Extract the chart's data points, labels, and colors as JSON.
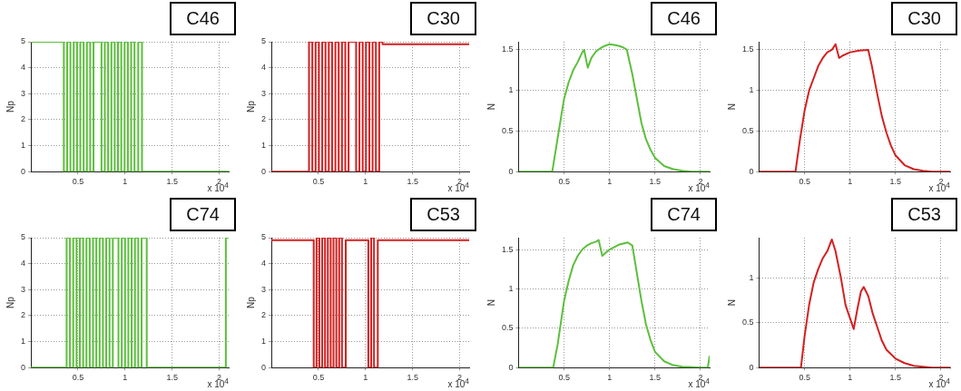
{
  "chart_data": [
    {
      "type": "line",
      "title": "C46",
      "ylabel": "Np",
      "annotations": [
        "x 10$^{4}$"
      ],
      "grid": true,
      "xlim": [
        0,
        2.1
      ],
      "xticks": [
        0.5,
        1,
        1.5,
        2
      ],
      "ylim": [
        0,
        5
      ],
      "yticks": [
        0,
        1,
        2,
        3,
        4,
        5
      ],
      "series": [
        {
          "color": "#5cbf3c",
          "x": [
            0,
            0.35,
            0.35,
            0.385,
            0.385,
            0.42,
            0.42,
            0.455,
            0.455,
            0.49,
            0.49,
            0.525,
            0.525,
            0.56,
            0.56,
            0.595,
            0.595,
            0.63,
            0.63,
            0.665,
            0.665,
            0.7,
            0.75,
            0.75,
            0.785,
            0.785,
            0.82,
            0.82,
            0.855,
            0.855,
            0.89,
            0.89,
            0.925,
            0.925,
            0.96,
            0.96,
            0.995,
            0.995,
            1.03,
            1.03,
            1.065,
            1.065,
            1.1,
            1.1,
            1.14,
            1.14,
            1.18,
            1.18,
            2.1
          ],
          "values": [
            5,
            5,
            0,
            0,
            5,
            5,
            0,
            0,
            5,
            5,
            0,
            0,
            5,
            5,
            0,
            0,
            5,
            5,
            0,
            0,
            5,
            5,
            5,
            0,
            0,
            5,
            5,
            0,
            0,
            5,
            5,
            0,
            0,
            5,
            5,
            0,
            0,
            5,
            5,
            0,
            0,
            5,
            5,
            0,
            0,
            5,
            5,
            0,
            0
          ]
        }
      ]
    },
    {
      "type": "line",
      "title": "C30",
      "ylabel": "Np",
      "annotations": [
        "x 10$^{4}$"
      ],
      "grid": true,
      "xlim": [
        0,
        2.1
      ],
      "xticks": [
        0.5,
        1,
        1.5,
        2
      ],
      "ylim": [
        0,
        5
      ],
      "yticks": [
        0,
        1,
        2,
        3,
        4,
        5
      ],
      "series": [
        {
          "color": "#d42020",
          "x": [
            0,
            0.4,
            0.4,
            0.435,
            0.435,
            0.47,
            0.47,
            0.505,
            0.505,
            0.54,
            0.54,
            0.575,
            0.575,
            0.61,
            0.61,
            0.645,
            0.645,
            0.68,
            0.68,
            0.715,
            0.715,
            0.75,
            0.75,
            0.785,
            0.785,
            0.82,
            0.82,
            0.9,
            0.9,
            0.935,
            0.935,
            0.97,
            0.97,
            1.005,
            1.005,
            1.04,
            1.04,
            1.075,
            1.075,
            1.11,
            1.11,
            1.145,
            1.145,
            1.18,
            1.18,
            2.1
          ],
          "values": [
            0,
            0,
            5,
            5,
            0,
            0,
            5,
            5,
            0,
            0,
            5,
            5,
            0,
            0,
            5,
            5,
            0,
            0,
            5,
            5,
            0,
            0,
            5,
            5,
            0,
            0,
            5,
            5,
            0,
            0,
            5,
            5,
            0,
            0,
            5,
            5,
            0,
            0,
            5,
            5,
            0,
            0,
            5,
            5,
            4.9,
            4.9
          ]
        }
      ]
    },
    {
      "type": "line",
      "title": "C46",
      "ylabel": "N",
      "annotations": [
        "x 10$^{4}$"
      ],
      "grid": true,
      "xlim": [
        0,
        2.1
      ],
      "xticks": [
        0.5,
        1,
        1.5,
        2
      ],
      "ylim": [
        0,
        1.6
      ],
      "yticks": [
        0,
        0.5,
        1,
        1.5
      ],
      "series": [
        {
          "color": "#5cbf3c",
          "x": [
            0,
            0.37,
            0.42,
            0.5,
            0.55,
            0.6,
            0.65,
            0.7,
            0.72,
            0.76,
            0.8,
            0.85,
            0.9,
            0.95,
            1.0,
            1.05,
            1.1,
            1.15,
            1.19,
            1.25,
            1.3,
            1.35,
            1.4,
            1.45,
            1.5,
            1.6,
            1.7,
            1.8,
            1.9,
            2.1
          ],
          "values": [
            0,
            0,
            0.35,
            0.9,
            1.1,
            1.25,
            1.35,
            1.47,
            1.5,
            1.28,
            1.4,
            1.48,
            1.52,
            1.55,
            1.57,
            1.56,
            1.55,
            1.53,
            1.5,
            1.2,
            0.9,
            0.6,
            0.4,
            0.27,
            0.17,
            0.07,
            0.03,
            0.01,
            0,
            0
          ]
        }
      ]
    },
    {
      "type": "line",
      "title": "C30",
      "ylabel": "N",
      "annotations": [
        "x 10$^{4}$"
      ],
      "grid": true,
      "xlim": [
        0,
        2.1
      ],
      "xticks": [
        0.5,
        1,
        1.5,
        2
      ],
      "ylim": [
        0,
        1.6
      ],
      "yticks": [
        0,
        0.5,
        1,
        1.5
      ],
      "series": [
        {
          "color": "#d42020",
          "x": [
            0,
            0.4,
            0.45,
            0.5,
            0.55,
            0.6,
            0.65,
            0.7,
            0.75,
            0.8,
            0.84,
            0.88,
            0.92,
            1.0,
            1.1,
            1.2,
            1.24,
            1.3,
            1.35,
            1.4,
            1.45,
            1.5,
            1.6,
            1.7,
            1.8,
            1.9,
            2.1
          ],
          "values": [
            0,
            0,
            0.4,
            0.75,
            1.0,
            1.15,
            1.3,
            1.4,
            1.47,
            1.5,
            1.57,
            1.4,
            1.43,
            1.47,
            1.49,
            1.5,
            1.3,
            0.95,
            0.68,
            0.48,
            0.32,
            0.2,
            0.08,
            0.03,
            0.01,
            0,
            0
          ]
        }
      ]
    },
    {
      "type": "line",
      "title": "C74",
      "ylabel": "Np",
      "annotations": [
        "x 10$^{4}$"
      ],
      "grid": true,
      "xlim": [
        0,
        2.1
      ],
      "xticks": [
        0.5,
        1,
        1.5,
        2
      ],
      "ylim": [
        0,
        5
      ],
      "yticks": [
        0,
        1,
        2,
        3,
        4,
        5
      ],
      "series": [
        {
          "color": "#5cbf3c",
          "x": [
            0,
            0.38,
            0.38,
            0.415,
            0.415,
            0.45,
            0.45,
            0.485,
            0.485,
            0.52,
            0.52,
            0.555,
            0.555,
            0.59,
            0.59,
            0.625,
            0.625,
            0.66,
            0.66,
            0.695,
            0.695,
            0.73,
            0.73,
            0.765,
            0.765,
            0.8,
            0.8,
            0.835,
            0.835,
            0.87,
            0.87,
            0.93,
            0.93,
            0.965,
            0.965,
            1.0,
            1.0,
            1.035,
            1.035,
            1.07,
            1.07,
            1.105,
            1.105,
            1.14,
            1.14,
            1.175,
            1.175,
            1.23,
            1.23,
            2.07,
            2.07,
            2.1
          ],
          "values": [
            0,
            0,
            5,
            5,
            0,
            0,
            5,
            5,
            0,
            0,
            5,
            5,
            0,
            0,
            5,
            5,
            0,
            0,
            5,
            5,
            0,
            0,
            5,
            5,
            0,
            0,
            5,
            5,
            0,
            0,
            5,
            5,
            0,
            0,
            5,
            5,
            0,
            0,
            5,
            5,
            0,
            0,
            5,
            5,
            0,
            0,
            5,
            5,
            0,
            0,
            5,
            5
          ]
        }
      ]
    },
    {
      "type": "line",
      "title": "C53",
      "ylabel": "Np",
      "annotations": [
        "x 10$^{4}$"
      ],
      "grid": true,
      "xlim": [
        0,
        2.1
      ],
      "xticks": [
        0.5,
        1,
        1.5,
        2
      ],
      "ylim": [
        0,
        5
      ],
      "yticks": [
        0,
        1,
        2,
        3,
        4,
        5
      ],
      "series": [
        {
          "color": "#d42020",
          "x": [
            0,
            0.45,
            0.45,
            0.48,
            0.48,
            0.51,
            0.51,
            0.54,
            0.54,
            0.57,
            0.57,
            0.6,
            0.6,
            0.63,
            0.63,
            0.66,
            0.66,
            0.69,
            0.69,
            0.72,
            0.72,
            0.75,
            0.75,
            0.79,
            0.79,
            1.03,
            1.03,
            1.06,
            1.06,
            1.09,
            1.09,
            1.13,
            1.13,
            2.1
          ],
          "values": [
            4.9,
            4.9,
            0,
            0,
            5,
            5,
            0,
            0,
            5,
            5,
            0,
            0,
            5,
            5,
            0,
            0,
            5,
            5,
            0,
            0,
            5,
            5,
            0,
            0,
            4.9,
            4.9,
            0,
            0,
            5,
            5,
            0,
            0,
            4.9,
            4.9
          ]
        }
      ]
    },
    {
      "type": "line",
      "title": "C74",
      "ylabel": "N",
      "annotations": [
        "x 10$^{4}$"
      ],
      "grid": true,
      "xlim": [
        0,
        2.1
      ],
      "xticks": [
        0.5,
        1,
        1.5,
        2
      ],
      "ylim": [
        0,
        1.65
      ],
      "yticks": [
        0,
        0.5,
        1,
        1.5
      ],
      "series": [
        {
          "color": "#5cbf3c",
          "x": [
            0,
            0.38,
            0.43,
            0.5,
            0.55,
            0.6,
            0.65,
            0.7,
            0.75,
            0.8,
            0.85,
            0.88,
            0.92,
            0.95,
            1.0,
            1.1,
            1.2,
            1.25,
            1.3,
            1.35,
            1.4,
            1.45,
            1.5,
            1.6,
            1.7,
            1.8,
            2.0,
            2.08,
            2.1
          ],
          "values": [
            0,
            0,
            0.3,
            0.85,
            1.1,
            1.3,
            1.42,
            1.5,
            1.55,
            1.58,
            1.6,
            1.62,
            1.42,
            1.45,
            1.5,
            1.56,
            1.59,
            1.55,
            1.2,
            0.85,
            0.55,
            0.35,
            0.2,
            0.08,
            0.03,
            0.01,
            0,
            0,
            0.15
          ]
        }
      ]
    },
    {
      "type": "line",
      "title": "C53",
      "ylabel": "N",
      "annotations": [
        "x 10$^{4}$"
      ],
      "grid": true,
      "xlim": [
        0,
        2.1
      ],
      "xticks": [
        0.5,
        1,
        1.5,
        2
      ],
      "ylim": [
        0,
        1.45
      ],
      "yticks": [
        0,
        0.5,
        1
      ],
      "series": [
        {
          "color": "#d42020",
          "x": [
            0,
            0.46,
            0.5,
            0.55,
            0.6,
            0.65,
            0.7,
            0.75,
            0.8,
            0.84,
            0.9,
            0.95,
            1.0,
            1.04,
            1.08,
            1.12,
            1.15,
            1.2,
            1.25,
            1.3,
            1.35,
            1.4,
            1.5,
            1.6,
            1.7,
            1.8,
            1.9,
            2.1
          ],
          "values": [
            0,
            0,
            0.35,
            0.7,
            0.95,
            1.1,
            1.22,
            1.3,
            1.43,
            1.3,
            1.0,
            0.7,
            0.55,
            0.43,
            0.65,
            0.85,
            0.9,
            0.8,
            0.6,
            0.45,
            0.3,
            0.2,
            0.1,
            0.05,
            0.02,
            0.01,
            0,
            0
          ]
        }
      ]
    }
  ]
}
